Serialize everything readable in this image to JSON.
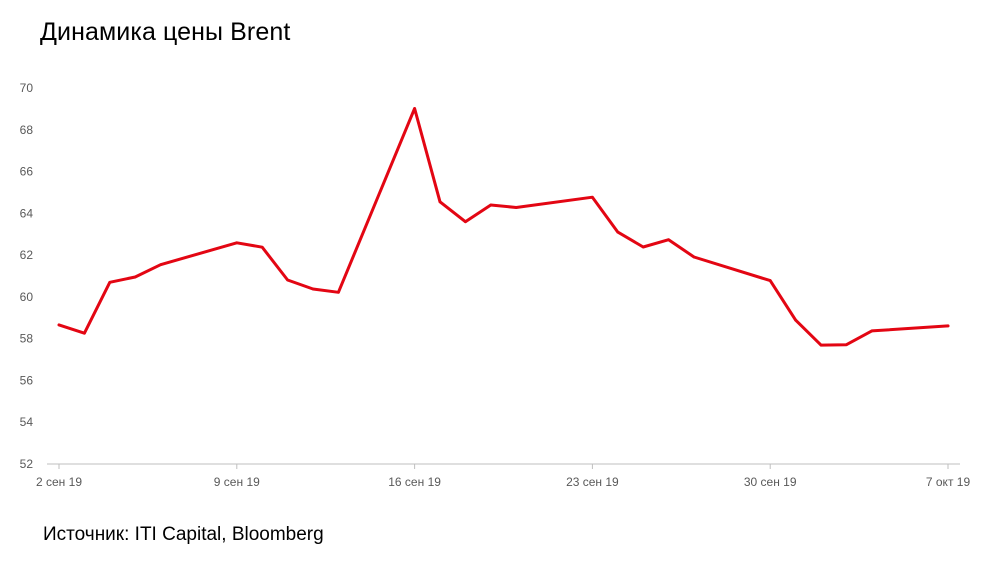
{
  "title": "Динамика цены Brent",
  "source": "Источник: ITI Capital, Bloomberg",
  "colors": {
    "line": "#e30613",
    "axis": "#bfbfbf",
    "tick_text": "#595959"
  },
  "chart_data": {
    "type": "line",
    "title": "Динамика цены Brent",
    "xlabel": "",
    "ylabel": "",
    "ylim": [
      52,
      70
    ],
    "y_ticks": [
      52,
      54,
      56,
      58,
      60,
      62,
      64,
      66,
      68,
      70
    ],
    "x_ticks": [
      {
        "date": "2019-09-02",
        "label": "2 сен 19"
      },
      {
        "date": "2019-09-09",
        "label": "9 сен 19"
      },
      {
        "date": "2019-09-16",
        "label": "16 сен 19"
      },
      {
        "date": "2019-09-23",
        "label": "23 сен 19"
      },
      {
        "date": "2019-09-30",
        "label": "30 сен 19"
      },
      {
        "date": "2019-10-07",
        "label": "7 окт 19"
      }
    ],
    "xlim": [
      "2019-09-02",
      "2019-10-07"
    ],
    "grid": false,
    "legend": "none",
    "series": [
      {
        "points": [
          {
            "x": "2019-09-02",
            "y": 58.66
          },
          {
            "x": "2019-09-03",
            "y": 58.26
          },
          {
            "x": "2019-09-04",
            "y": 60.7
          },
          {
            "x": "2019-09-05",
            "y": 60.95
          },
          {
            "x": "2019-09-06",
            "y": 61.54
          },
          {
            "x": "2019-09-09",
            "y": 62.59
          },
          {
            "x": "2019-09-10",
            "y": 62.38
          },
          {
            "x": "2019-09-11",
            "y": 60.81
          },
          {
            "x": "2019-09-12",
            "y": 60.38
          },
          {
            "x": "2019-09-13",
            "y": 60.22
          },
          {
            "x": "2019-09-16",
            "y": 69.02
          },
          {
            "x": "2019-09-17",
            "y": 64.55
          },
          {
            "x": "2019-09-18",
            "y": 63.6
          },
          {
            "x": "2019-09-19",
            "y": 64.4
          },
          {
            "x": "2019-09-20",
            "y": 64.28
          },
          {
            "x": "2019-09-23",
            "y": 64.77
          },
          {
            "x": "2019-09-24",
            "y": 63.1
          },
          {
            "x": "2019-09-25",
            "y": 62.39
          },
          {
            "x": "2019-09-26",
            "y": 62.74
          },
          {
            "x": "2019-09-27",
            "y": 61.91
          },
          {
            "x": "2019-09-30",
            "y": 60.78
          },
          {
            "x": "2019-10-01",
            "y": 58.89
          },
          {
            "x": "2019-10-02",
            "y": 57.69
          },
          {
            "x": "2019-10-03",
            "y": 57.71
          },
          {
            "x": "2019-10-04",
            "y": 58.37
          },
          {
            "x": "2019-10-07",
            "y": 58.61
          }
        ]
      }
    ]
  }
}
